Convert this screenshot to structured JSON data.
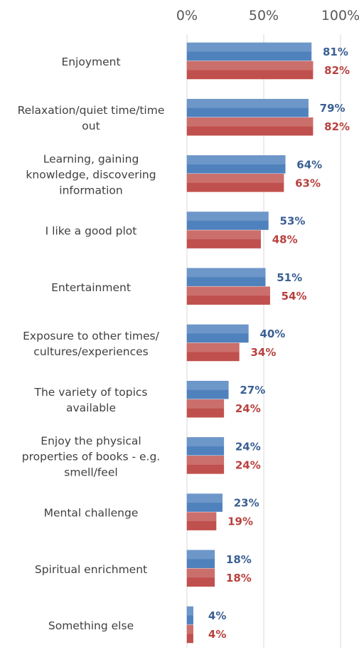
{
  "chart_data": {
    "type": "bar",
    "orientation": "horizontal",
    "xlim": [
      0,
      100
    ],
    "x_ticks": [
      "0%",
      "50%",
      "100%"
    ],
    "x_tick_values": [
      0,
      50,
      100
    ],
    "grid": true,
    "categories": [
      "Enjoyment",
      "Relaxation/quiet time/time out",
      "Learning, gaining knowledge, discovering information",
      "I like a good plot",
      "Entertainment",
      "Exposure to other times/ cultures/experiences",
      "The variety of topics available",
      "Enjoy the physical properties of books - e.g. smell/feel",
      "Mental challenge",
      "Spiritual enrichment",
      "Something else"
    ],
    "category_lines": [
      [
        "Enjoyment"
      ],
      [
        "Relaxation/quiet time/time",
        "out"
      ],
      [
        "Learning, gaining",
        "knowledge, discovering",
        "information"
      ],
      [
        "I like a good plot"
      ],
      [
        "Entertainment"
      ],
      [
        "Exposure to other times/",
        "cultures/experiences"
      ],
      [
        "The variety of topics",
        "available"
      ],
      [
        "Enjoy the physical",
        "properties of books - e.g.",
        "smell/feel"
      ],
      [
        "Mental challenge"
      ],
      [
        "Spiritual enrichment"
      ],
      [
        "Something else"
      ]
    ],
    "series": [
      {
        "color": "#4F81BD",
        "label_color": "#3A5F93",
        "values": [
          81,
          79,
          64,
          53,
          51,
          40,
          27,
          24,
          23,
          18,
          4
        ],
        "labels": [
          "81%",
          "79%",
          "64%",
          "53%",
          "51%",
          "40%",
          "27%",
          "24%",
          "23%",
          "18%",
          "4%"
        ]
      },
      {
        "color": "#C0504D",
        "label_color": "#B8413E",
        "values": [
          82,
          82,
          63,
          48,
          54,
          34,
          24,
          24,
          19,
          18,
          4
        ],
        "labels": [
          "82%",
          "82%",
          "63%",
          "48%",
          "54%",
          "34%",
          "24%",
          "24%",
          "19%",
          "18%",
          "4%"
        ]
      }
    ]
  }
}
